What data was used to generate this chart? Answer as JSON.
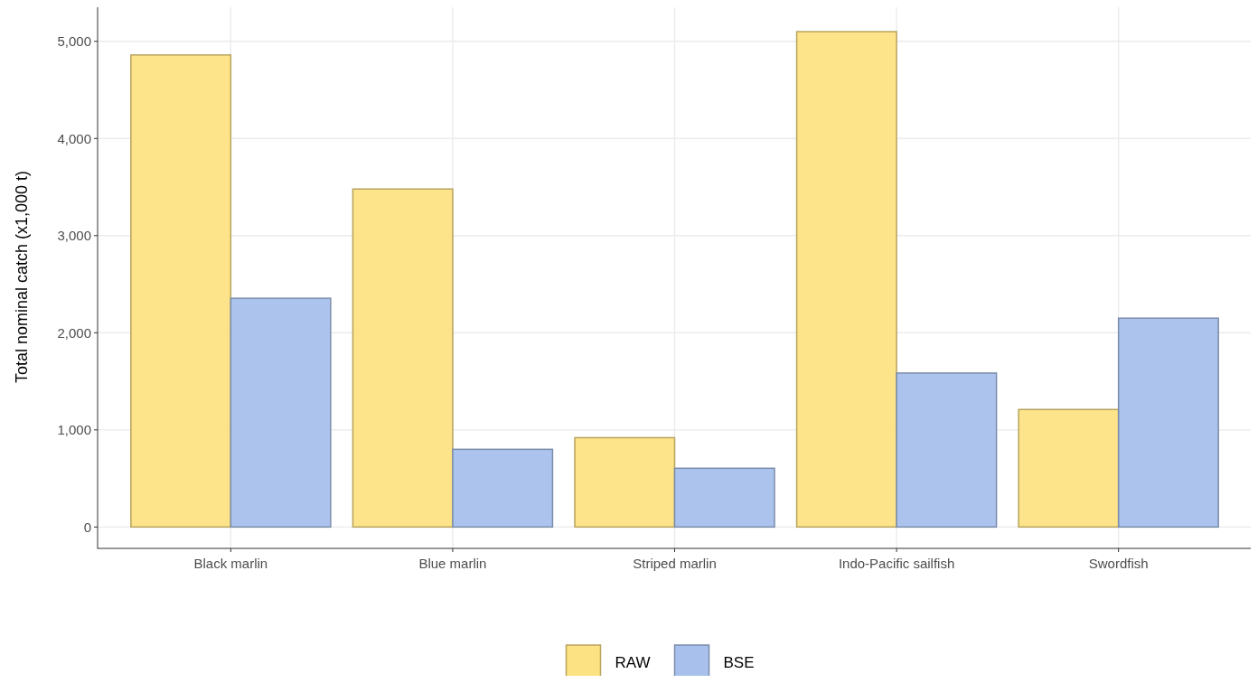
{
  "chart_data": {
    "type": "bar",
    "ylabel": "Total nominal catch (x1,000 t)",
    "categories": [
      "Black marlin",
      "Blue marlin",
      "Striped marlin",
      "Indo-Pacific sailfish",
      "Swordfish"
    ],
    "series": [
      {
        "name": "RAW",
        "color": "#fde283",
        "values": [
          4860,
          3480,
          920,
          5100,
          1210
        ]
      },
      {
        "name": "BSE",
        "color": "#a8c1ec",
        "values": [
          2355,
          800,
          605,
          1585,
          2150
        ]
      }
    ],
    "ylim": [
      -220,
      5370
    ],
    "yticks": [
      {
        "value": 0,
        "label": "0"
      },
      {
        "value": 1000,
        "label": "1,000"
      },
      {
        "value": 2000,
        "label": "2,000"
      },
      {
        "value": 3000,
        "label": "3,000"
      },
      {
        "value": 4000,
        "label": "4,000"
      },
      {
        "value": 5000,
        "label": "5,000"
      }
    ],
    "grid": true,
    "legend": "bottom"
  }
}
